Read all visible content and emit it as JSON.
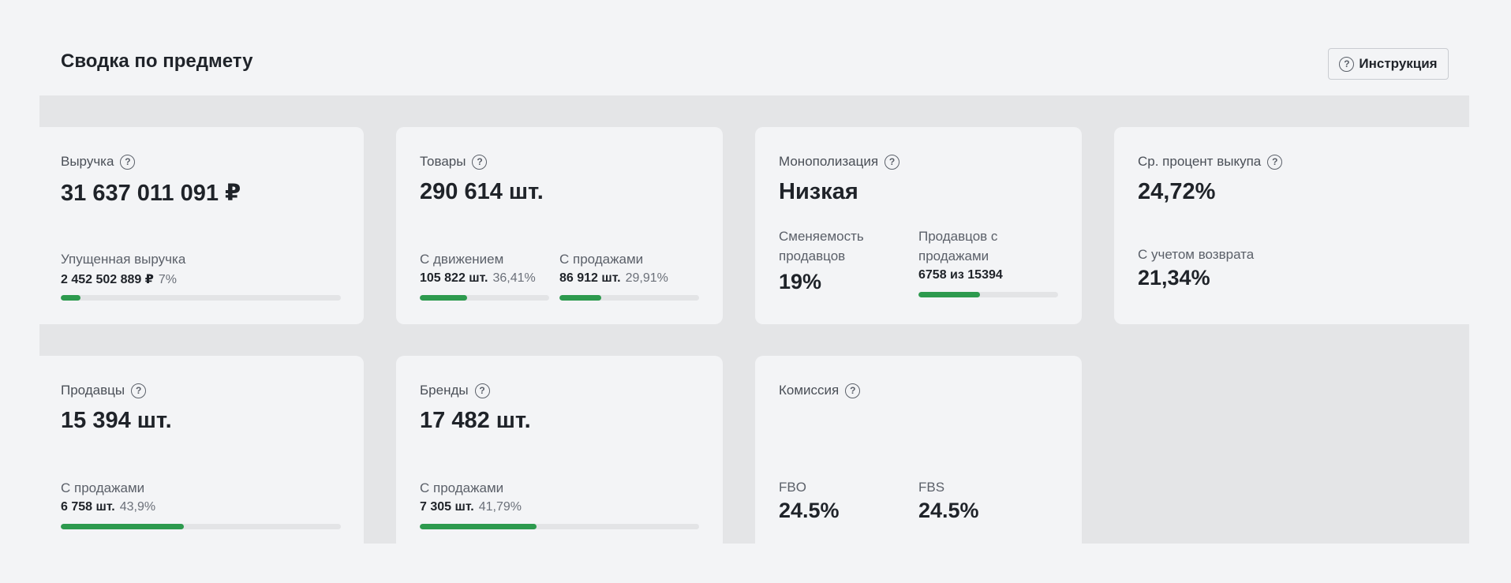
{
  "header": {
    "title": "Сводка по предмету",
    "guide_button": "Инструкция"
  },
  "cards": {
    "revenue": {
      "label": "Выручка",
      "value": "31 637 011 091 ₽",
      "sub_label": "Упущенная выручка",
      "sub_value": "2 452 502 889 ₽",
      "sub_percent": "7%",
      "progress": 7
    },
    "goods": {
      "label": "Товары",
      "value": "290 614 шт.",
      "moving_label": "С движением",
      "moving_value": "105 822 шт.",
      "moving_percent": "36,41%",
      "moving_progress": 36.41,
      "sales_label": "С продажами",
      "sales_value": "86 912 шт.",
      "sales_percent": "29,91%",
      "sales_progress": 29.91
    },
    "monopoly": {
      "label": "Монополизация",
      "value": "Низкая",
      "turnover_label": "Сменяемость продавцов",
      "turnover_value": "19%",
      "sellers_label": "Продавцов с продажами",
      "sellers_value": "6758 из 15394",
      "sellers_progress": 43.9
    },
    "buyout": {
      "label": "Ср. процент выкупа",
      "value": "24,72%",
      "return_label": "С учетом возврата",
      "return_value": "21,34%"
    },
    "sellers": {
      "label": "Продавцы",
      "value": "15 394 шт.",
      "sub_label": "С продажами",
      "sub_value": "6 758 шт.",
      "sub_percent": "43,9%",
      "progress": 43.9
    },
    "brands": {
      "label": "Бренды",
      "value": "17 482 шт.",
      "sub_label": "С продажами",
      "sub_value": "7 305 шт.",
      "sub_percent": "41,79%",
      "progress": 41.79
    },
    "commission": {
      "label": "Комиссия",
      "fbo_label": "FBO",
      "fbo_value": "24.5%",
      "fbs_label": "FBS",
      "fbs_value": "24.5%"
    }
  },
  "colors": {
    "accent_green": "#2d9a4e",
    "card_bg": "#f3f4f6",
    "grid_bg": "#e4e5e7"
  },
  "icons": {
    "help": "question-circle-icon"
  }
}
